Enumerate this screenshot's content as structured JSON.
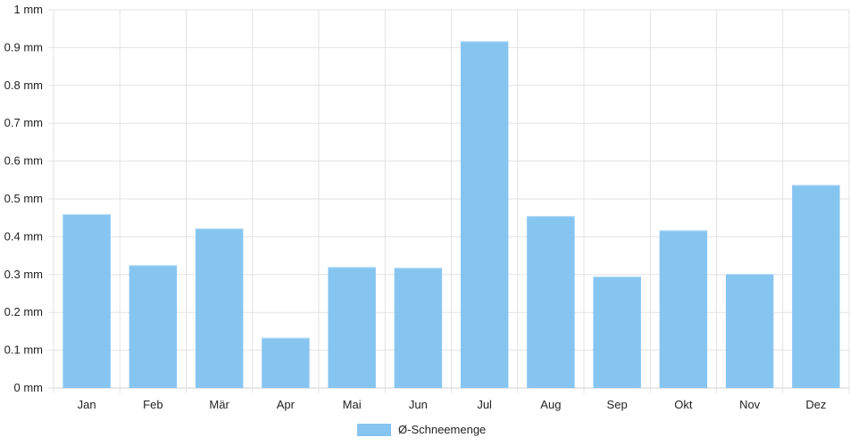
{
  "chart_data": {
    "type": "bar",
    "categories": [
      "Jan",
      "Feb",
      "Mär",
      "Apr",
      "Mai",
      "Jun",
      "Jul",
      "Aug",
      "Sep",
      "Okt",
      "Nov",
      "Dez"
    ],
    "series": [
      {
        "name": "Ø-Schneemenge",
        "values": [
          0.46,
          0.325,
          0.422,
          0.133,
          0.32,
          0.318,
          0.917,
          0.455,
          0.295,
          0.417,
          0.302,
          0.537
        ],
        "color": "#87c5f1"
      }
    ],
    "ylim": [
      0,
      1
    ],
    "yticks": [
      "0 mm",
      "0.1 mm",
      "0.2 mm",
      "0.3 mm",
      "0.4 mm",
      "0.5 mm",
      "0.6 mm",
      "0.7 mm",
      "0.8 mm",
      "0.9 mm",
      "1 mm"
    ],
    "grid": true,
    "legend_position": "bottom"
  }
}
